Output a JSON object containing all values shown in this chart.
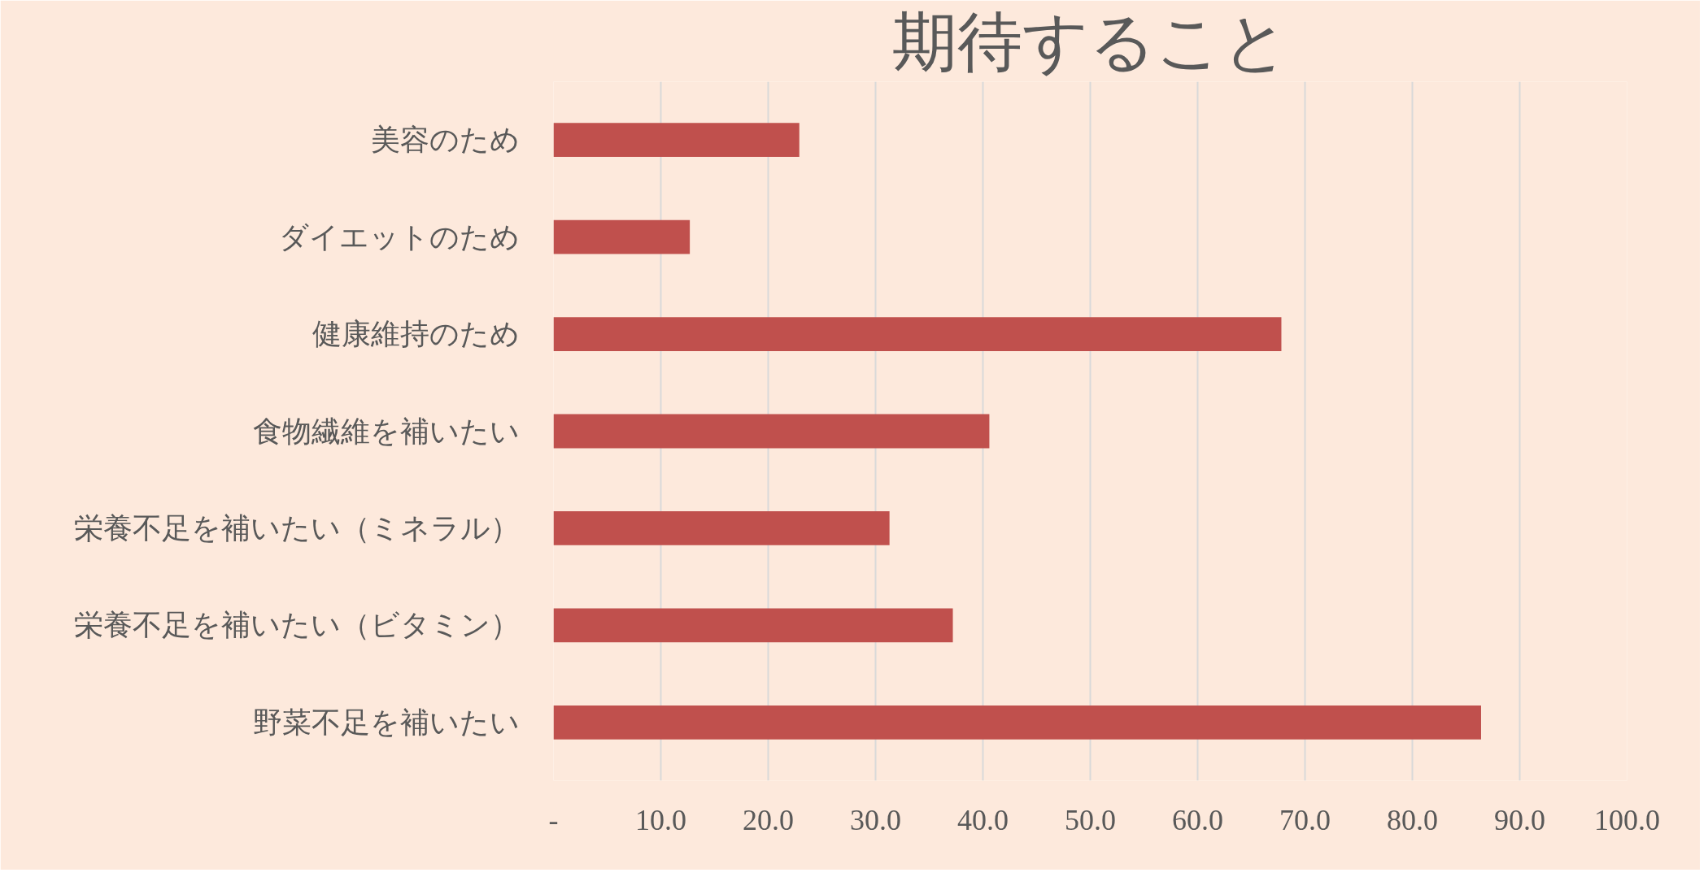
{
  "chart_data": {
    "type": "bar",
    "orientation": "horizontal",
    "title": "期待すること",
    "categories": [
      "美容のため",
      "ダイエットのため",
      "健康維持のため",
      "食物繊維を補いたい",
      "栄養不足を補いたい（ミネラル）",
      "栄養不足を補いたい（ビタミン）",
      "野菜不足を補いたい"
    ],
    "values": [
      22.9,
      12.7,
      67.8,
      40.6,
      31.3,
      37.2,
      86.4
    ],
    "color": "#c0504d",
    "xlim": [
      0,
      100
    ],
    "xticks": [
      {
        "value": 0,
        "label": "-"
      },
      {
        "value": 10,
        "label": "10.0"
      },
      {
        "value": 20,
        "label": "20.0"
      },
      {
        "value": 30,
        "label": "30.0"
      },
      {
        "value": 40,
        "label": "40.0"
      },
      {
        "value": 50,
        "label": "50.0"
      },
      {
        "value": 60,
        "label": "60.0"
      },
      {
        "value": 70,
        "label": "70.0"
      },
      {
        "value": 80,
        "label": "80.0"
      },
      {
        "value": 90,
        "label": "90.0"
      },
      {
        "value": 100,
        "label": "100.0"
      }
    ],
    "grid": "x"
  }
}
